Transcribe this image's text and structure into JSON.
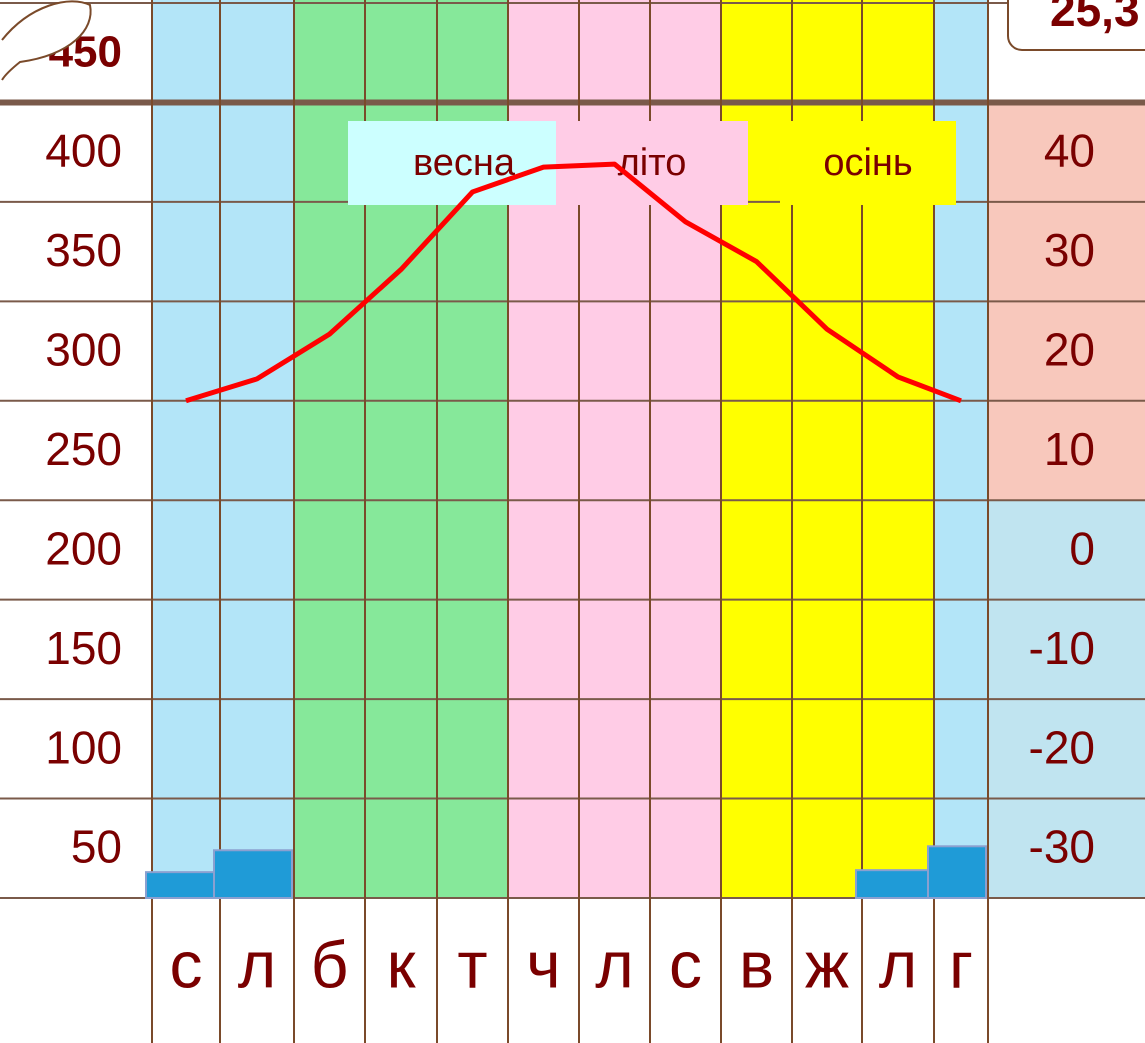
{
  "chart_data": {
    "type": "climate",
    "categories": [
      "с",
      "л",
      "б",
      "к",
      "т",
      "ч",
      "л",
      "с",
      "в",
      "ж",
      "л",
      "г"
    ],
    "band_colors": [
      "#b3e5f8",
      "#b3e5f8",
      "#86e89a",
      "#86e89a",
      "#86e89a",
      "#ffcce6",
      "#ffcce6",
      "#ffcce6",
      "#ffff00",
      "#ffff00",
      "#ffff00",
      "#b3e5f8"
    ],
    "bars": {
      "color": "#1f9bd7",
      "values": [
        13,
        24,
        null,
        null,
        null,
        null,
        null,
        null,
        null,
        null,
        14,
        26
      ]
    },
    "line": {
      "color": "#ff0000",
      "values": [
        10,
        12.2,
        16.7,
        23.2,
        31,
        33.5,
        33.8,
        28,
        24,
        17.2,
        12.4,
        10
      ]
    },
    "ylim": [
      0,
      450
    ],
    "yticks": [
      450,
      400,
      350,
      300,
      250,
      200,
      150,
      100,
      50
    ],
    "y2lim": [
      -40,
      50
    ],
    "y2ticks": [
      40,
      30,
      20,
      10,
      0,
      -10,
      -20,
      -30
    ],
    "y2_colors": {
      "warm": "#f8c8bc",
      "cold": "#c0e4f0"
    },
    "seasons": [
      {
        "label": "весна",
        "color": "#ccffff"
      },
      {
        "label": "літо",
        "color": "#ffcce6"
      },
      {
        "label": "осінь",
        "color": "#ffff00"
      }
    ],
    "annotation": "25,3"
  }
}
